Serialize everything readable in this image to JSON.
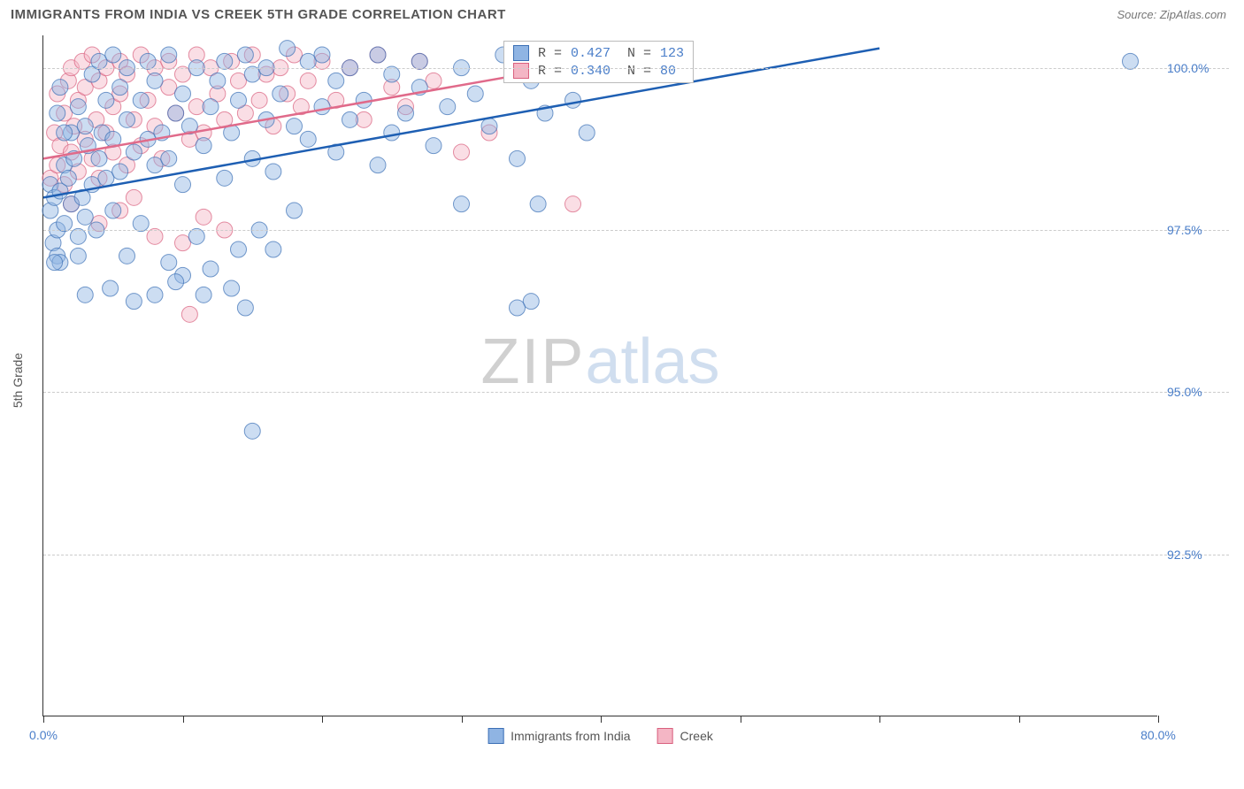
{
  "header": {
    "title": "IMMIGRANTS FROM INDIA VS CREEK 5TH GRADE CORRELATION CHART",
    "source": "Source: ZipAtlas.com"
  },
  "chart": {
    "type": "scatter",
    "yaxis_title": "5th Grade",
    "xlim": [
      0,
      80
    ],
    "ylim": [
      90,
      100.5
    ],
    "xtick_positions": [
      0,
      10,
      20,
      30,
      40,
      50,
      60,
      70,
      80
    ],
    "xtick_labels": {
      "0": "0.0%",
      "80": "80.0%"
    },
    "ytick_positions": [
      92.5,
      95.0,
      97.5,
      100.0
    ],
    "ytick_labels": [
      "92.5%",
      "95.0%",
      "97.5%",
      "100.0%"
    ],
    "grid_color": "#cccccc",
    "background_color": "#ffffff",
    "marker_radius": 9,
    "marker_opacity": 0.45,
    "series": [
      {
        "name": "Immigrants from India",
        "color_fill": "#8fb4e3",
        "color_stroke": "#3b6fb5",
        "line_color": "#1e5fb3",
        "R": "0.427",
        "N": "123",
        "regression": {
          "x1": 0,
          "y1": 98.0,
          "x2": 60,
          "y2": 100.3
        },
        "points": [
          [
            0.5,
            97.8
          ],
          [
            0.5,
            98.2
          ],
          [
            0.7,
            97.3
          ],
          [
            0.8,
            98.0
          ],
          [
            1.0,
            97.5
          ],
          [
            1.0,
            99.3
          ],
          [
            1.2,
            98.1
          ],
          [
            1.2,
            99.7
          ],
          [
            1.5,
            97.6
          ],
          [
            1.5,
            98.5
          ],
          [
            1.8,
            98.3
          ],
          [
            2.0,
            97.9
          ],
          [
            2.0,
            99.0
          ],
          [
            2.2,
            98.6
          ],
          [
            2.5,
            97.4
          ],
          [
            2.5,
            99.4
          ],
          [
            2.8,
            98.0
          ],
          [
            3.0,
            97.7
          ],
          [
            3.0,
            99.1
          ],
          [
            3.2,
            98.8
          ],
          [
            3.5,
            98.2
          ],
          [
            3.5,
            99.9
          ],
          [
            3.8,
            97.5
          ],
          [
            4.0,
            98.6
          ],
          [
            4.0,
            100.1
          ],
          [
            4.2,
            99.0
          ],
          [
            4.5,
            98.3
          ],
          [
            4.5,
            99.5
          ],
          [
            5.0,
            97.8
          ],
          [
            5.0,
            98.9
          ],
          [
            5.0,
            100.2
          ],
          [
            5.5,
            98.4
          ],
          [
            5.5,
            99.7
          ],
          [
            6.0,
            97.1
          ],
          [
            6.0,
            99.2
          ],
          [
            6.0,
            100.0
          ],
          [
            6.5,
            98.7
          ],
          [
            7.0,
            97.6
          ],
          [
            7.0,
            99.5
          ],
          [
            7.5,
            98.9
          ],
          [
            7.5,
            100.1
          ],
          [
            8.0,
            96.5
          ],
          [
            8.0,
            98.5
          ],
          [
            8.0,
            99.8
          ],
          [
            8.5,
            99.0
          ],
          [
            9.0,
            97.0
          ],
          [
            9.0,
            98.6
          ],
          [
            9.0,
            100.2
          ],
          [
            9.5,
            99.3
          ],
          [
            10.0,
            96.8
          ],
          [
            10.0,
            98.2
          ],
          [
            10.0,
            99.6
          ],
          [
            10.5,
            99.1
          ],
          [
            11.0,
            97.4
          ],
          [
            11.0,
            100.0
          ],
          [
            11.5,
            98.8
          ],
          [
            12.0,
            96.9
          ],
          [
            12.0,
            99.4
          ],
          [
            12.5,
            99.8
          ],
          [
            13.0,
            98.3
          ],
          [
            13.0,
            100.1
          ],
          [
            13.5,
            99.0
          ],
          [
            14.0,
            97.2
          ],
          [
            14.0,
            99.5
          ],
          [
            14.5,
            100.2
          ],
          [
            15.0,
            98.6
          ],
          [
            15.0,
            99.9
          ],
          [
            15.0,
            94.4
          ],
          [
            15.5,
            97.5
          ],
          [
            16.0,
            99.2
          ],
          [
            16.0,
            100.0
          ],
          [
            16.5,
            98.4
          ],
          [
            17.0,
            99.6
          ],
          [
            17.5,
            100.3
          ],
          [
            18.0,
            97.8
          ],
          [
            18.0,
            99.1
          ],
          [
            19.0,
            98.9
          ],
          [
            19.0,
            100.1
          ],
          [
            20.0,
            99.4
          ],
          [
            20.0,
            100.2
          ],
          [
            21.0,
            98.7
          ],
          [
            21.0,
            99.8
          ],
          [
            22.0,
            99.2
          ],
          [
            22.0,
            100.0
          ],
          [
            23.0,
            99.5
          ],
          [
            24.0,
            98.5
          ],
          [
            24.0,
            100.2
          ],
          [
            25.0,
            99.0
          ],
          [
            25.0,
            99.9
          ],
          [
            26.0,
            99.3
          ],
          [
            27.0,
            99.7
          ],
          [
            27.0,
            100.1
          ],
          [
            28.0,
            98.8
          ],
          [
            29.0,
            99.4
          ],
          [
            30.0,
            100.0
          ],
          [
            30.0,
            97.9
          ],
          [
            31.0,
            99.6
          ],
          [
            32.0,
            99.1
          ],
          [
            33.0,
            100.2
          ],
          [
            34.0,
            98.6
          ],
          [
            35.0,
            99.8
          ],
          [
            35.0,
            96.4
          ],
          [
            36.0,
            99.3
          ],
          [
            37.0,
            100.1
          ],
          [
            38.0,
            99.5
          ],
          [
            39.0,
            99.0
          ],
          [
            40.0,
            100.2
          ],
          [
            34.0,
            96.3
          ],
          [
            35.5,
            97.9
          ],
          [
            2.5,
            97.1
          ],
          [
            4.8,
            96.6
          ],
          [
            6.5,
            96.4
          ],
          [
            9.5,
            96.7
          ],
          [
            11.5,
            96.5
          ],
          [
            13.5,
            96.6
          ],
          [
            14.5,
            96.3
          ],
          [
            16.5,
            97.2
          ],
          [
            3.0,
            96.5
          ],
          [
            1.0,
            97.1
          ],
          [
            1.2,
            97.0
          ],
          [
            78.0,
            100.1
          ],
          [
            0.8,
            97.0
          ],
          [
            1.5,
            99.0
          ]
        ]
      },
      {
        "name": "Creek",
        "color_fill": "#f4b6c5",
        "color_stroke": "#d9607e",
        "line_color": "#e06a8a",
        "R": "0.340",
        "N": "80",
        "regression": {
          "x1": 0,
          "y1": 98.6,
          "x2": 45,
          "y2": 100.3
        },
        "points": [
          [
            0.5,
            98.3
          ],
          [
            0.8,
            99.0
          ],
          [
            1.0,
            98.5
          ],
          [
            1.0,
            99.6
          ],
          [
            1.2,
            98.8
          ],
          [
            1.5,
            98.2
          ],
          [
            1.5,
            99.3
          ],
          [
            1.8,
            99.8
          ],
          [
            2.0,
            98.7
          ],
          [
            2.0,
            100.0
          ],
          [
            2.2,
            99.1
          ],
          [
            2.5,
            98.4
          ],
          [
            2.5,
            99.5
          ],
          [
            2.8,
            100.1
          ],
          [
            3.0,
            98.9
          ],
          [
            3.0,
            99.7
          ],
          [
            3.5,
            98.6
          ],
          [
            3.5,
            100.2
          ],
          [
            3.8,
            99.2
          ],
          [
            4.0,
            98.3
          ],
          [
            4.0,
            99.8
          ],
          [
            4.5,
            99.0
          ],
          [
            4.5,
            100.0
          ],
          [
            5.0,
            98.7
          ],
          [
            5.0,
            99.4
          ],
          [
            5.5,
            100.1
          ],
          [
            5.5,
            99.6
          ],
          [
            6.0,
            98.5
          ],
          [
            6.0,
            99.9
          ],
          [
            6.5,
            99.2
          ],
          [
            7.0,
            100.2
          ],
          [
            7.0,
            98.8
          ],
          [
            7.5,
            99.5
          ],
          [
            8.0,
            100.0
          ],
          [
            8.0,
            99.1
          ],
          [
            8.5,
            98.6
          ],
          [
            9.0,
            99.7
          ],
          [
            9.0,
            100.1
          ],
          [
            9.5,
            99.3
          ],
          [
            10.0,
            99.9
          ],
          [
            10.5,
            98.9
          ],
          [
            11.0,
            100.2
          ],
          [
            11.0,
            99.4
          ],
          [
            11.5,
            99.0
          ],
          [
            12.0,
            100.0
          ],
          [
            12.5,
            99.6
          ],
          [
            13.0,
            99.2
          ],
          [
            13.5,
            100.1
          ],
          [
            14.0,
            99.8
          ],
          [
            14.5,
            99.3
          ],
          [
            15.0,
            100.2
          ],
          [
            15.5,
            99.5
          ],
          [
            16.0,
            99.9
          ],
          [
            16.5,
            99.1
          ],
          [
            17.0,
            100.0
          ],
          [
            17.5,
            99.6
          ],
          [
            18.0,
            100.2
          ],
          [
            18.5,
            99.4
          ],
          [
            19.0,
            99.8
          ],
          [
            20.0,
            100.1
          ],
          [
            21.0,
            99.5
          ],
          [
            22.0,
            100.0
          ],
          [
            23.0,
            99.2
          ],
          [
            24.0,
            100.2
          ],
          [
            25.0,
            99.7
          ],
          [
            26.0,
            99.4
          ],
          [
            27.0,
            100.1
          ],
          [
            28.0,
            99.8
          ],
          [
            30.0,
            98.7
          ],
          [
            32.0,
            99.0
          ],
          [
            4.0,
            97.6
          ],
          [
            5.5,
            97.8
          ],
          [
            8.0,
            97.4
          ],
          [
            10.0,
            97.3
          ],
          [
            11.5,
            97.7
          ],
          [
            13.0,
            97.5
          ],
          [
            2.0,
            97.9
          ],
          [
            38.0,
            97.9
          ],
          [
            10.5,
            96.2
          ],
          [
            6.5,
            98.0
          ]
        ]
      }
    ],
    "legend_bottom": [
      {
        "label": "Immigrants from India",
        "fill": "#8fb4e3",
        "stroke": "#3b6fb5"
      },
      {
        "label": "Creek",
        "fill": "#f4b6c5",
        "stroke": "#d9607e"
      }
    ],
    "watermark": {
      "part1": "ZIP",
      "part2": "atlas"
    }
  }
}
